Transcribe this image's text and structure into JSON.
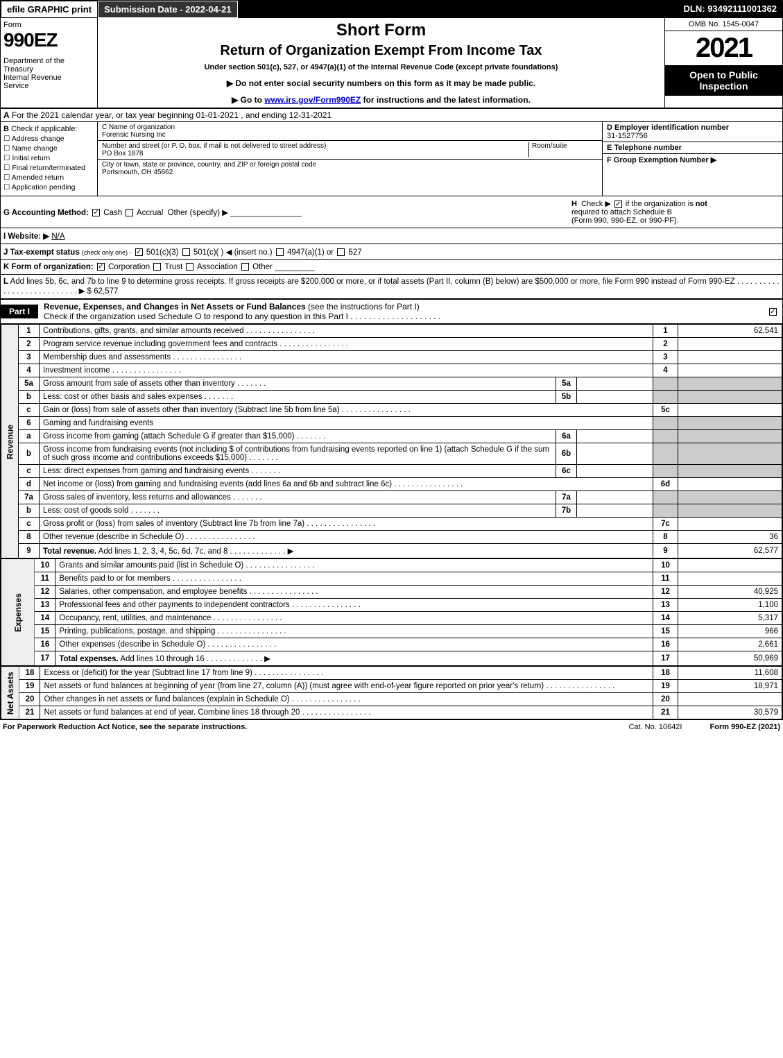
{
  "topbar": {
    "efile": "efile GRAPHIC print",
    "submission": "Submission Date - 2022-04-21",
    "dln": "DLN: 93492111001362"
  },
  "header": {
    "form_word": "Form",
    "form_num": "990EZ",
    "dept": "Department of the Treasury\nInternal Revenue Service",
    "short_form": "Short Form",
    "title": "Return of Organization Exempt From Income Tax",
    "sub": "Under section 501(c), 527, or 4947(a)(1) of the Internal Revenue Code (except private foundations)",
    "note1": "▶ Do not enter social security numbers on this form as it may be made public.",
    "note2_pre": "▶ Go to ",
    "note2_link": "www.irs.gov/Form990EZ",
    "note2_post": " for instructions and the latest information.",
    "omb": "OMB No. 1545-0047",
    "year": "2021",
    "open": "Open to Public Inspection"
  },
  "rowA": {
    "label": "A",
    "text": "For the 2021 calendar year, or tax year beginning 01-01-2021 , and ending 12-31-2021"
  },
  "colB": {
    "label": "B",
    "title": "Check if applicable:",
    "items": [
      "Address change",
      "Name change",
      "Initial return",
      "Final return/terminated",
      "Amended return",
      "Application pending"
    ]
  },
  "colC": {
    "name_label": "C Name of organization",
    "name": "Forensic Nursing Inc",
    "addr_label": "Number and street (or P. O. box, if mail is not delivered to street address)",
    "room_label": "Room/suite",
    "addr": "PO Box 1878",
    "city_label": "City or town, state or province, country, and ZIP or foreign postal code",
    "city": "Portsmouth, OH  45662"
  },
  "colDE": {
    "d_label": "D Employer identification number",
    "ein": "31-1527756",
    "e_label": "E Telephone number",
    "f_label": "F Group Exemption Number   ▶"
  },
  "rowG": {
    "label": "G Accounting Method:",
    "cash": "Cash",
    "accrual": "Accrual",
    "other": "Other (specify) ▶",
    "h_label": "H",
    "h_text": "Check ▶ ☑ if the organization is not required to attach Schedule B (Form 990, 990-EZ, or 990-PF).",
    "h_text1": "Check ▶",
    "h_text2": "if the organization is ",
    "h_not": "not",
    "h_text3": "required to attach Schedule B",
    "h_text4": "(Form 990, 990-EZ, or 990-PF)."
  },
  "rowI": {
    "label": "I Website: ▶",
    "value": "N/A"
  },
  "rowJ": {
    "label": "J Tax-exempt status",
    "sub": "(check only one) -",
    "opt1": "501(c)(3)",
    "opt2": "501(c)(  ) ◀ (insert no.)",
    "opt3": "4947(a)(1) or",
    "opt4": "527"
  },
  "rowK": {
    "label": "K Form of organization:",
    "opts": [
      "Corporation",
      "Trust",
      "Association",
      "Other"
    ]
  },
  "rowL": {
    "label": "L",
    "text": "Add lines 5b, 6c, and 7b to line 9 to determine gross receipts. If gross receipts are $200,000 or more, or if total assets (Part II, column (B) below) are $500,000 or more, file Form 990 instead of Form 990-EZ",
    "amount": "▶ $ 62,577"
  },
  "part1": {
    "tab": "Part I",
    "title": "Revenue, Expenses, and Changes in Net Assets or Fund Balances",
    "sub": "(see the instructions for Part I)",
    "check": "Check if the organization used Schedule O to respond to any question in this Part I"
  },
  "sections": {
    "revenue": "Revenue",
    "expenses": "Expenses",
    "netassets": "Net Assets"
  },
  "lines": [
    {
      "n": "1",
      "d": "Contributions, gifts, grants, and similar amounts received",
      "r": "1",
      "a": "62,541"
    },
    {
      "n": "2",
      "d": "Program service revenue including government fees and contracts",
      "r": "2",
      "a": ""
    },
    {
      "n": "3",
      "d": "Membership dues and assessments",
      "r": "3",
      "a": ""
    },
    {
      "n": "4",
      "d": "Investment income",
      "r": "4",
      "a": ""
    },
    {
      "n": "5a",
      "d": "Gross amount from sale of assets other than inventory",
      "ml": "5a",
      "mv": "",
      "shade": true
    },
    {
      "n": "b",
      "d": "Less: cost or other basis and sales expenses",
      "ml": "5b",
      "mv": "",
      "shade": true
    },
    {
      "n": "c",
      "d": "Gain or (loss) from sale of assets other than inventory (Subtract line 5b from line 5a)",
      "r": "5c",
      "a": ""
    },
    {
      "n": "6",
      "d": "Gaming and fundraising events",
      "shade": true,
      "noval": true
    },
    {
      "n": "a",
      "d": "Gross income from gaming (attach Schedule G if greater than $15,000)",
      "ml": "6a",
      "mv": "",
      "shade": true
    },
    {
      "n": "b",
      "d": "Gross income from fundraising events (not including $                    of contributions from fundraising events reported on line 1) (attach Schedule G if the sum of such gross income and contributions exceeds $15,000)",
      "ml": "6b",
      "mv": "",
      "shade": true
    },
    {
      "n": "c",
      "d": "Less: direct expenses from gaming and fundraising events",
      "ml": "6c",
      "mv": "",
      "shade": true
    },
    {
      "n": "d",
      "d": "Net income or (loss) from gaming and fundraising events (add lines 6a and 6b and subtract line 6c)",
      "r": "6d",
      "a": ""
    },
    {
      "n": "7a",
      "d": "Gross sales of inventory, less returns and allowances",
      "ml": "7a",
      "mv": "",
      "shade": true
    },
    {
      "n": "b",
      "d": "Less: cost of goods sold",
      "ml": "7b",
      "mv": "",
      "shade": true
    },
    {
      "n": "c",
      "d": "Gross profit or (loss) from sales of inventory (Subtract line 7b from line 7a)",
      "r": "7c",
      "a": ""
    },
    {
      "n": "8",
      "d": "Other revenue (describe in Schedule O)",
      "r": "8",
      "a": "36"
    },
    {
      "n": "9",
      "d": "Total revenue. Add lines 1, 2, 3, 4, 5c, 6d, 7c, and 8",
      "r": "9",
      "a": "62,577",
      "bold": true,
      "arrow": true
    }
  ],
  "expenses": [
    {
      "n": "10",
      "d": "Grants and similar amounts paid (list in Schedule O)",
      "r": "10",
      "a": ""
    },
    {
      "n": "11",
      "d": "Benefits paid to or for members",
      "r": "11",
      "a": ""
    },
    {
      "n": "12",
      "d": "Salaries, other compensation, and employee benefits",
      "r": "12",
      "a": "40,925"
    },
    {
      "n": "13",
      "d": "Professional fees and other payments to independent contractors",
      "r": "13",
      "a": "1,100"
    },
    {
      "n": "14",
      "d": "Occupancy, rent, utilities, and maintenance",
      "r": "14",
      "a": "5,317"
    },
    {
      "n": "15",
      "d": "Printing, publications, postage, and shipping",
      "r": "15",
      "a": "966"
    },
    {
      "n": "16",
      "d": "Other expenses (describe in Schedule O)",
      "r": "16",
      "a": "2,661"
    },
    {
      "n": "17",
      "d": "Total expenses. Add lines 10 through 16",
      "r": "17",
      "a": "50,969",
      "bold": true,
      "arrow": true
    }
  ],
  "netassets": [
    {
      "n": "18",
      "d": "Excess or (deficit) for the year (Subtract line 17 from line 9)",
      "r": "18",
      "a": "11,608"
    },
    {
      "n": "19",
      "d": "Net assets or fund balances at beginning of year (from line 27, column (A)) (must agree with end-of-year figure reported on prior year's return)",
      "r": "19",
      "a": "18,971"
    },
    {
      "n": "20",
      "d": "Other changes in net assets or fund balances (explain in Schedule O)",
      "r": "20",
      "a": ""
    },
    {
      "n": "21",
      "d": "Net assets or fund balances at end of year. Combine lines 18 through 20",
      "r": "21",
      "a": "30,579"
    }
  ],
  "footer": {
    "f1": "For Paperwork Reduction Act Notice, see the separate instructions.",
    "f2": "Cat. No. 10642I",
    "f3": "Form 990-EZ (2021)"
  }
}
